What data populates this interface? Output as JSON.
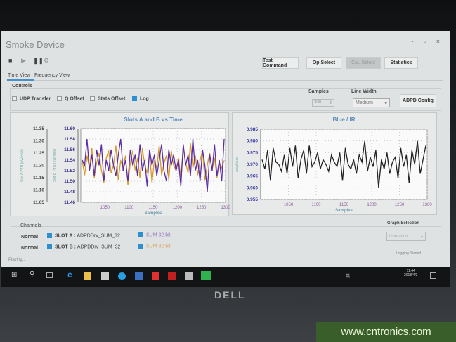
{
  "window": {
    "title": "Smoke Device",
    "controls": "- ▫ ×"
  },
  "toolbar": {
    "buttons": [
      "Test Command",
      "Op.Select",
      "Cal. Select",
      "Statistics"
    ],
    "icons": [
      "stop-icon",
      "play-icon",
      "pause-icon",
      "settings-icon"
    ]
  },
  "tabs": [
    "Time View",
    "Frequency View"
  ],
  "controls": {
    "title": "Controls",
    "checkboxes": [
      {
        "label": "UDP Transfer",
        "checked": false
      },
      {
        "label": "Q Offset",
        "checked": false
      },
      {
        "label": "Stats Offset",
        "checked": false
      },
      {
        "label": "Log",
        "checked": true
      }
    ],
    "samples_label": "Samples",
    "samples_value": "300",
    "line_width_label": "Line Width",
    "line_width_value": "Medium",
    "config_button": "ADPD Config"
  },
  "chart_data": [
    {
      "type": "line",
      "title": "Slots A and B vs Time",
      "xlabel": "Samples",
      "xlim": [
        1000,
        1300
      ],
      "xticks": [
        "1050",
        "1100",
        "1150",
        "1200",
        "1250",
        "1300"
      ],
      "y_axes": [
        {
          "label": "Slot A PTR (nW/mW)",
          "range": [
            11.05,
            11.35
          ],
          "ticks": [
            "11.35",
            "11.30",
            "11.25",
            "11.20",
            "11.15",
            "11.10",
            "11.05"
          ]
        },
        {
          "label": "Slot B PTR (nW/mW)",
          "range": [
            11.46,
            11.6
          ],
          "ticks": [
            "11.60",
            "11.58",
            "11.56",
            "11.54",
            "11.52",
            "11.50",
            "11.48",
            "11.46"
          ]
        }
      ],
      "grid": true,
      "series": [
        {
          "axis": 0,
          "color": "#d89a2a",
          "values": [
            11.22,
            11.16,
            11.24,
            11.19,
            11.27,
            11.15,
            11.21,
            11.25,
            11.18,
            11.13,
            11.23,
            11.26,
            11.17,
            11.2,
            11.28,
            11.14,
            11.22,
            11.19,
            11.24,
            11.12,
            11.21,
            11.26,
            11.18,
            11.23,
            11.15,
            11.27,
            11.2,
            11.17,
            11.25,
            11.13,
            11.22,
            11.19,
            11.28,
            11.16,
            11.21,
            11.24,
            11.14,
            11.26,
            11.2,
            11.18,
            11.23,
            11.15,
            11.27,
            11.21,
            11.17,
            11.29,
            11.19,
            11.24,
            11.16,
            11.22,
            11.26,
            11.14,
            11.2,
            11.25,
            11.18,
            11.23,
            11.15,
            11.21,
            11.19,
            11.22
          ]
        },
        {
          "axis": 1,
          "color": "#5a2ea8",
          "values": [
            11.54,
            11.53,
            11.58,
            11.52,
            11.55,
            11.51,
            11.56,
            11.53,
            11.57,
            11.5,
            11.54,
            11.52,
            11.56,
            11.53,
            11.51,
            11.55,
            11.58,
            11.52,
            11.54,
            11.5,
            11.56,
            11.53,
            11.55,
            11.51,
            11.57,
            11.52,
            11.54,
            11.49,
            11.56,
            11.53,
            11.55,
            11.51,
            11.54,
            11.57,
            11.52,
            11.5,
            11.56,
            11.53,
            11.55,
            11.52,
            11.54,
            11.49,
            11.57,
            11.53,
            11.55,
            11.51,
            11.58,
            11.52,
            11.54,
            11.5,
            11.56,
            11.53,
            11.48,
            11.55,
            11.52,
            11.57,
            11.51,
            11.54,
            11.5,
            11.58
          ]
        }
      ]
    },
    {
      "type": "line",
      "title": "Blue / IR",
      "xlabel": "Samples",
      "ylabel": "Amplitude",
      "xlim": [
        1000,
        1300
      ],
      "ylim": [
        0.955,
        0.985
      ],
      "xticks": [
        "1050",
        "1100",
        "1150",
        "1200",
        "1250",
        "1300"
      ],
      "yticks": [
        "0.985",
        "0.980",
        "0.975",
        "0.970",
        "0.965",
        "0.960",
        "0.955"
      ],
      "grid": true,
      "series": [
        {
          "color": "#222222",
          "values": [
            0.972,
            0.968,
            0.976,
            0.963,
            0.977,
            0.971,
            0.97,
            0.967,
            0.974,
            0.966,
            0.977,
            0.969,
            0.978,
            0.964,
            0.972,
            0.976,
            0.966,
            0.978,
            0.969,
            0.971,
            0.975,
            0.968,
            0.972,
            0.97,
            0.967,
            0.974,
            0.971,
            0.969,
            0.975,
            0.963,
            0.977,
            0.97,
            0.968,
            0.972,
            0.966,
            0.974,
            0.971,
            0.98,
            0.967,
            0.973,
            0.969,
            0.976,
            0.96,
            0.972,
            0.968,
            0.975,
            0.966,
            0.971,
            0.973,
            0.964,
            0.977,
            0.969,
            0.974,
            0.962,
            0.976,
            0.97,
            0.98,
            0.966,
            0.972,
            0.978
          ]
        }
      ]
    }
  ],
  "channels": {
    "title": "Channels",
    "rows": [
      {
        "mode": "Normal",
        "slot": "SLOT A :",
        "source": "ADPDDrv_SUM_32",
        "sum": "SUM 32 bit",
        "sum_color": "#9a7ac0"
      },
      {
        "mode": "Normal",
        "slot": "SLOT B :",
        "source": "ADPDDrv_SUM_32",
        "sum": "SUM 32 bit",
        "sum_color": "#d8a860"
      }
    ]
  },
  "graph_selection": {
    "label": "Graph Selection",
    "value": "Operation"
  },
  "status": {
    "left": "Playing...",
    "right": "Logging Started..."
  },
  "taskbar": {
    "time": "11:44",
    "date": "2018/4/3",
    "ime": "英"
  },
  "brand": "DELL",
  "watermark": "www.cntronics.com"
}
